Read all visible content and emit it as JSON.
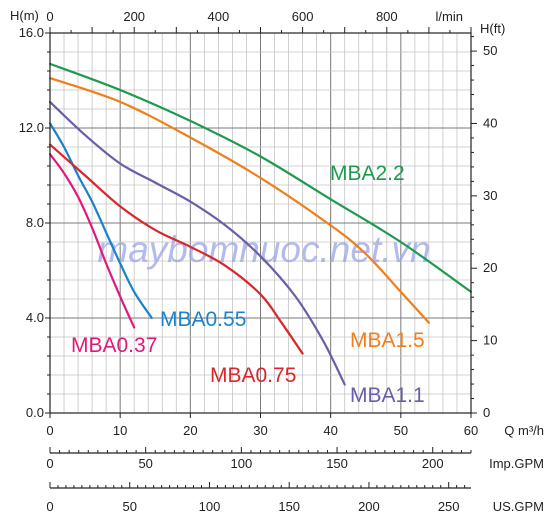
{
  "chart_data": {
    "type": "line",
    "title": "",
    "watermark": "maybomnuoc.net.vn",
    "x_primary": {
      "label": "Q m³/h",
      "range": [
        0,
        60
      ],
      "ticks": [
        "0",
        "10",
        "20",
        "30",
        "40",
        "50",
        "60"
      ]
    },
    "x_lmin": {
      "label": "l/min",
      "range": [
        0,
        1000
      ],
      "ticks": [
        "0",
        "200",
        "400",
        "600",
        "800"
      ]
    },
    "x_impgpm": {
      "label": "Imp.GPM",
      "range": [
        0,
        220
      ],
      "ticks": [
        "0",
        "50",
        "100",
        "150",
        "200"
      ]
    },
    "x_usgpm": {
      "label": "US.GPM",
      "range": [
        0,
        264
      ],
      "ticks": [
        "0",
        "50",
        "100",
        "150",
        "200",
        "250"
      ]
    },
    "y_left": {
      "label": "H(m)",
      "range": [
        0,
        16
      ],
      "ticks": [
        "0.0",
        "4.0",
        "8.0",
        "12.0",
        "16.0"
      ]
    },
    "y_right": {
      "label": "H(ft)",
      "range": [
        0,
        52.5
      ],
      "ticks": [
        "0",
        "10",
        "20",
        "30",
        "40",
        "50"
      ]
    },
    "grid": true,
    "series": [
      {
        "name": "MBA0.37",
        "color": "#e0197d",
        "points": [
          [
            0,
            10.9
          ],
          [
            2,
            10.1
          ],
          [
            4,
            9.1
          ],
          [
            6,
            7.8
          ],
          [
            8,
            6.3
          ],
          [
            10,
            4.9
          ],
          [
            12,
            3.6
          ]
        ]
      },
      {
        "name": "MBA0.55",
        "color": "#1a82c8",
        "points": [
          [
            0,
            12.2
          ],
          [
            2,
            11.2
          ],
          [
            4,
            10.0
          ],
          [
            6,
            8.9
          ],
          [
            8,
            7.6
          ],
          [
            10,
            6.3
          ],
          [
            12,
            5.1
          ],
          [
            14.5,
            4.0
          ]
        ]
      },
      {
        "name": "MBA0.75",
        "color": "#d8262b",
        "points": [
          [
            0,
            11.3
          ],
          [
            5,
            10.0
          ],
          [
            10,
            8.7
          ],
          [
            15,
            7.7
          ],
          [
            20,
            7.0
          ],
          [
            25,
            6.2
          ],
          [
            30,
            5.0
          ],
          [
            33,
            3.8
          ],
          [
            36,
            2.5
          ]
        ]
      },
      {
        "name": "MBA1.1",
        "color": "#6a5ea8",
        "points": [
          [
            0,
            13.1
          ],
          [
            5,
            11.7
          ],
          [
            10,
            10.5
          ],
          [
            15,
            9.7
          ],
          [
            20,
            8.9
          ],
          [
            25,
            7.9
          ],
          [
            30,
            6.6
          ],
          [
            35,
            4.9
          ],
          [
            39,
            3.0
          ],
          [
            42,
            1.2
          ]
        ]
      },
      {
        "name": "MBA1.5",
        "color": "#ef7f1a",
        "points": [
          [
            0,
            14.1
          ],
          [
            10,
            13.1
          ],
          [
            20,
            11.6
          ],
          [
            30,
            9.9
          ],
          [
            40,
            7.9
          ],
          [
            45,
            6.7
          ],
          [
            50,
            5.1
          ],
          [
            54,
            3.8
          ]
        ]
      },
      {
        "name": "MBA2.2",
        "color": "#1f9950",
        "points": [
          [
            0,
            14.7
          ],
          [
            10,
            13.6
          ],
          [
            20,
            12.3
          ],
          [
            30,
            10.8
          ],
          [
            40,
            9.0
          ],
          [
            50,
            7.2
          ],
          [
            60,
            5.1
          ]
        ]
      }
    ]
  }
}
